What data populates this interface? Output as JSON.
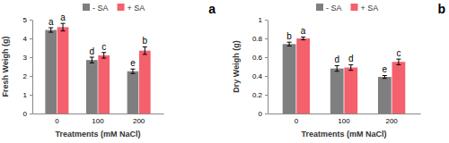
{
  "chart_data": [
    {
      "type": "bar",
      "panel": "a",
      "y_label": "Fresh Weigh (g)",
      "x_label": "Treatments (mM NaCl)",
      "categories": [
        "0",
        "100",
        "200"
      ],
      "series": [
        {
          "name": "- SA",
          "color": "#7f7f7f",
          "values": [
            4.45,
            2.85,
            2.25
          ],
          "errors": [
            0.12,
            0.15,
            0.12
          ],
          "annotations": [
            "a",
            "d",
            "e"
          ]
        },
        {
          "name": "+ SA",
          "color": "#f4606c",
          "values": [
            4.6,
            3.1,
            3.35
          ],
          "errors": [
            0.2,
            0.15,
            0.2
          ],
          "annotations": [
            "a",
            "c",
            "b"
          ]
        }
      ],
      "ylim": [
        0,
        5
      ],
      "yticks": [
        0,
        1,
        2,
        3,
        4,
        5
      ],
      "grid": false,
      "legend": "top"
    },
    {
      "type": "bar",
      "panel": "b",
      "y_label": "Dry Weigh (g)",
      "x_label": "Treatments (mM NaCl)",
      "categories": [
        "0",
        "100",
        "200"
      ],
      "series": [
        {
          "name": "- SA",
          "color": "#7f7f7f",
          "values": [
            0.74,
            0.48,
            0.39
          ],
          "errors": [
            0.02,
            0.03,
            0.015
          ],
          "annotations": [
            "b",
            "d",
            "e"
          ]
        },
        {
          "name": "+ SA",
          "color": "#f4606c",
          "values": [
            0.8,
            0.49,
            0.55
          ],
          "errors": [
            0.015,
            0.03,
            0.03
          ],
          "annotations": [
            "a",
            "d",
            "c"
          ]
        }
      ],
      "ylim": [
        0,
        1
      ],
      "yticks": [
        0,
        0.2,
        0.4,
        0.6,
        0.8,
        1
      ],
      "grid": false,
      "legend": "top"
    }
  ]
}
